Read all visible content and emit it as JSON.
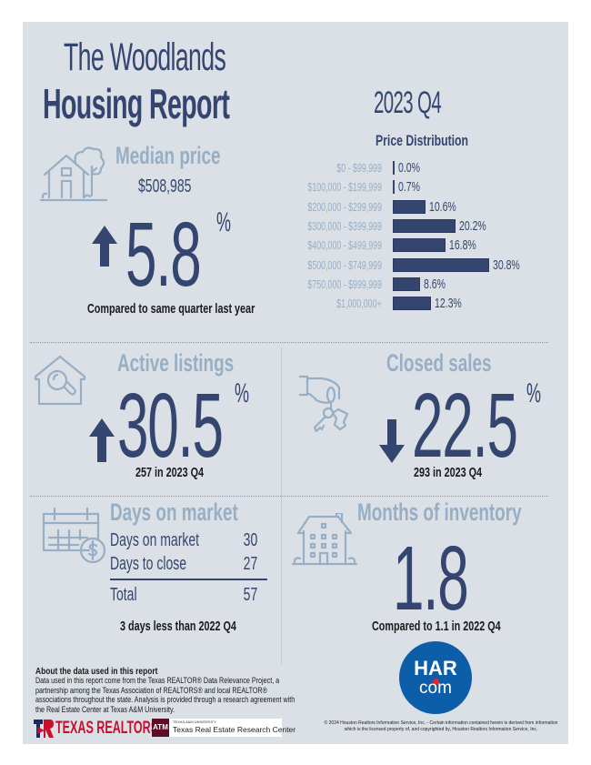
{
  "header": {
    "title_line1": "The Woodlands",
    "title_line2": "Housing Report",
    "quarter": "2023 Q4"
  },
  "colors": {
    "navy": "#34466f",
    "muted": "#97aec5",
    "panel_bg": "#dbe0e7",
    "har_blue": "#0c5ea8",
    "har_red": "#e8232e",
    "texas_realtors_red": "#c8102e",
    "tamu_maroon": "#5c0a26"
  },
  "median_price": {
    "icon": "house-with-tree-icon",
    "title": "Median price",
    "price": "$508,985",
    "direction": "up",
    "change": "5.8",
    "unit": "%",
    "caption": "Compared to same quarter last year"
  },
  "chart_data": {
    "type": "bar",
    "orientation": "horizontal",
    "title": "Price Distribution",
    "categories": [
      "$0 - $99,999",
      "$100,000 - $199,999",
      "$200,000 - $299,999",
      "$300,000 - $399,999",
      "$400,000 - $499,999",
      "$500,000 - $749,999",
      "$750,000 - $999,999",
      "$1,000,000+"
    ],
    "values": [
      0.0,
      0.7,
      10.6,
      20.2,
      16.8,
      30.8,
      8.6,
      12.3
    ],
    "value_labels": [
      "0.0%",
      "0.7%",
      "10.6%",
      "20.2%",
      "16.8%",
      "30.8%",
      "8.6%",
      "12.3%"
    ],
    "unit": "%",
    "xlabel": "",
    "ylabel": "",
    "grid": false,
    "legend": "none"
  },
  "active_listings": {
    "icon": "house-search-icon",
    "title": "Active listings",
    "direction": "up",
    "change": "30.5",
    "unit": "%",
    "caption": "257 in 2023 Q4"
  },
  "closed_sales": {
    "icon": "hand-keys-icon",
    "title": "Closed sales",
    "direction": "down",
    "change": "22.5",
    "unit": "%",
    "caption": "293 in 2023 Q4"
  },
  "days_on_market": {
    "icon": "calendar-dollar-icon",
    "title": "Days on market",
    "rows": [
      {
        "label": "Days on market",
        "value": "30"
      },
      {
        "label": "Days to close",
        "value": "27"
      }
    ],
    "total_label": "Total",
    "total_value": "57",
    "caption": "3 days less than 2022 Q4"
  },
  "months_inventory": {
    "icon": "apartment-building-icon",
    "title": "Months of inventory",
    "value": "1.8",
    "caption": "Compared to 1.1 in 2022 Q4"
  },
  "about": {
    "heading": "About the data used in this report",
    "body": "Data used in this report come from the Texas REALTOR® Data Relevance Project, a partnership among the Texas Association of REALTORS® and local REALTOR® associations throughout the state. Analysis is provided through a research agreement with the Real Estate Center at Texas A&M University."
  },
  "logos": {
    "texas_realtors": "TEXAS REALTORS",
    "tamu_small": "TEXAS A&M UNIVERSITY",
    "tamu_big": "Texas Real Estate Research Center",
    "tamu_mark": "ATM",
    "har_top": "HAR",
    "har_bottom": "com"
  },
  "copyright": "© 2024 Houston Realtors Information Service, Inc. - Certain information contained herein is derived from information which is the licensed property of, and copyrighted by, Houston Realtors Information Service, Inc."
}
